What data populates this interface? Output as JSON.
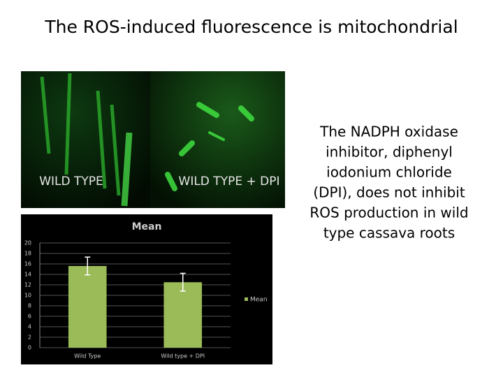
{
  "title": "The ROS-induced fluorescence is mitochondrial",
  "images": [
    {
      "label": "WILD TYPE"
    },
    {
      "label": "WILD TYPE + DPI"
    }
  ],
  "caption": [
    "The NADPH oxidase",
    "inhibitor, diphenyl",
    "iodonium chloride",
    "(DPI), does not inhibit",
    "ROS production in wild",
    "type cassava roots"
  ],
  "chart_data": {
    "type": "bar",
    "title": "Mean",
    "categories": [
      "Wild Type",
      "Wild type + DPI"
    ],
    "series": [
      {
        "name": "Mean",
        "color": "#9bbb59",
        "values": [
          15.6,
          12.5
        ],
        "errors": [
          1.7,
          1.7
        ]
      }
    ],
    "ylim": [
      0,
      20
    ],
    "yticks": [
      0,
      2,
      4,
      6,
      8,
      10,
      12,
      14,
      16,
      18,
      20
    ],
    "grid": true,
    "legend": "right"
  }
}
